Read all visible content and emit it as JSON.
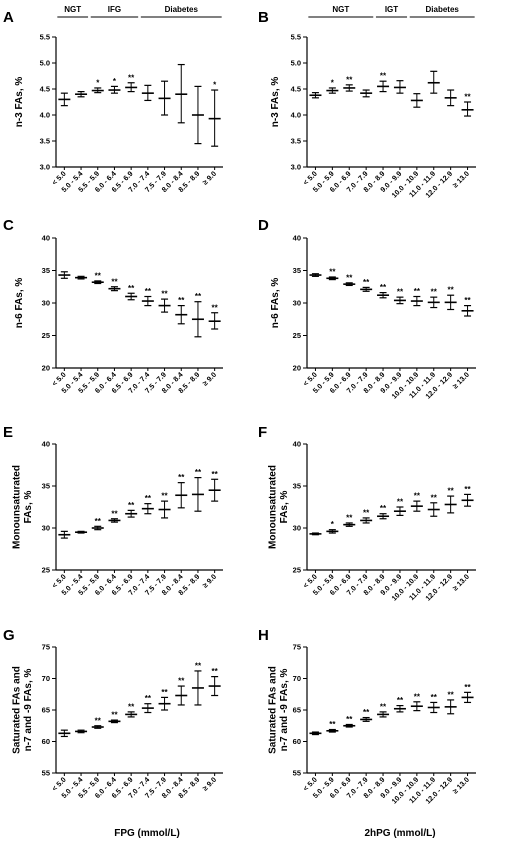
{
  "figure": {
    "xlabel_left": "FPG (mmol/L)",
    "xlabel_right": "2hPG (mmol/L)",
    "groups_left": [
      {
        "label": "NGT",
        "from": 0,
        "to": 1
      },
      {
        "label": "IFG",
        "from": 2,
        "to": 4
      },
      {
        "label": "Diabetes",
        "from": 5,
        "to": 9
      }
    ],
    "groups_right": [
      {
        "label": "NGT",
        "from": 0,
        "to": 3
      },
      {
        "label": "IGT",
        "from": 4,
        "to": 5
      },
      {
        "label": "Diabetes",
        "from": 6,
        "to": 9
      }
    ]
  },
  "chart_data": [
    {
      "panel": "A",
      "type": "scatter",
      "ylabel": "n-3 FAs, %",
      "categories": [
        "< 5.0",
        "5.0 - 5.4",
        "5.5 - 5.9",
        "6.0 - 6.4",
        "6.5 - 6.9",
        "7.0 - 7.4",
        "7.5 - 7.9",
        "8.0 - 8.4",
        "8.5 - 8.9",
        "≥ 9.0"
      ],
      "mean": [
        4.3,
        4.4,
        4.47,
        4.48,
        4.53,
        4.42,
        4.32,
        4.4,
        4.0,
        3.93
      ],
      "lower": [
        4.18,
        4.35,
        4.43,
        4.42,
        4.45,
        4.28,
        4.0,
        3.85,
        3.45,
        3.4
      ],
      "upper": [
        4.42,
        4.45,
        4.52,
        4.55,
        4.62,
        4.57,
        4.65,
        4.97,
        4.55,
        4.48
      ],
      "stars": [
        "",
        "",
        "*",
        "*",
        "**",
        "",
        "",
        "",
        "",
        "*"
      ],
      "ylim": [
        3.0,
        5.5
      ],
      "yticks": [
        "3.0",
        "3.5",
        "4.0",
        "4.5",
        "5.0",
        "5.5"
      ]
    },
    {
      "panel": "B",
      "type": "scatter",
      "ylabel": "n-3 FAs, %",
      "categories": [
        "< 5.0",
        "5.0 - 5.9",
        "6.0 - 6.9",
        "7.0 - 7.9",
        "8.0 - 8.9",
        "9.0 - 9.9",
        "10.0 - 10.9",
        "11.0 - 11.9",
        "12.0 - 12.9",
        "≥ 13.0"
      ],
      "mean": [
        4.38,
        4.47,
        4.52,
        4.42,
        4.55,
        4.53,
        4.28,
        4.62,
        4.33,
        4.1
      ],
      "lower": [
        4.33,
        4.42,
        4.46,
        4.35,
        4.45,
        4.42,
        4.15,
        4.42,
        4.18,
        3.98
      ],
      "upper": [
        4.43,
        4.52,
        4.58,
        4.48,
        4.65,
        4.66,
        4.41,
        4.84,
        4.48,
        4.25
      ],
      "stars": [
        "",
        "*",
        "**",
        "",
        "**",
        "",
        "",
        "",
        "",
        "**"
      ],
      "ylim": [
        3.0,
        5.5
      ],
      "yticks": [
        "3.0",
        "3.5",
        "4.0",
        "4.5",
        "5.0",
        "5.5"
      ]
    },
    {
      "panel": "C",
      "type": "scatter",
      "ylabel": "n-6 FAs, %",
      "categories": [
        "< 5.0",
        "5.0 - 5.4",
        "5.5 - 5.9",
        "6.0 - 6.4",
        "6.5 - 6.9",
        "7.0 - 7.4",
        "7.5 - 7.9",
        "8.0 - 8.4",
        "8.5 - 8.9",
        "≥ 9.0"
      ],
      "mean": [
        34.3,
        33.9,
        33.2,
        32.2,
        31.0,
        30.3,
        29.6,
        28.2,
        27.5,
        27.2
      ],
      "lower": [
        33.8,
        33.7,
        33.0,
        31.9,
        30.5,
        29.6,
        28.6,
        26.8,
        24.8,
        26.0
      ],
      "upper": [
        34.8,
        34.1,
        33.4,
        32.5,
        31.5,
        31.0,
        30.6,
        29.6,
        30.2,
        28.5
      ],
      "stars": [
        "",
        "",
        "**",
        "**",
        "**",
        "**",
        "**",
        "**",
        "**",
        "**"
      ],
      "ylim": [
        20,
        40
      ],
      "yticks": [
        "20",
        "25",
        "30",
        "35",
        "40"
      ]
    },
    {
      "panel": "D",
      "type": "scatter",
      "ylabel": "n-6 FAs, %",
      "categories": [
        "< 5.0",
        "5.0 - 5.9",
        "6.0 - 6.9",
        "7.0 - 7.9",
        "8.0 - 8.9",
        "9.0 - 9.9",
        "10.0 - 10.9",
        "11.0 - 11.9",
        "12.0 - 12.9",
        "≥ 13.0"
      ],
      "mean": [
        34.3,
        33.8,
        32.9,
        32.1,
        31.2,
        30.4,
        30.3,
        30.1,
        30.1,
        28.8
      ],
      "lower": [
        34.1,
        33.6,
        32.7,
        31.8,
        30.8,
        29.9,
        29.6,
        29.3,
        29.0,
        28.0
      ],
      "upper": [
        34.5,
        34.0,
        33.1,
        32.4,
        31.6,
        30.9,
        31.0,
        30.9,
        31.2,
        29.6
      ],
      "stars": [
        "",
        "**",
        "**",
        "**",
        "**",
        "**",
        "**",
        "**",
        "**",
        "**"
      ],
      "ylim": [
        20,
        40
      ],
      "yticks": [
        "20",
        "25",
        "30",
        "35",
        "40"
      ]
    },
    {
      "panel": "E",
      "type": "scatter",
      "ylabel": "Monounsaturated FAs, %",
      "categories": [
        "< 5.0",
        "5.0 - 5.4",
        "5.5 - 5.9",
        "6.0 - 6.4",
        "6.5 - 6.9",
        "7.0 - 7.4",
        "7.5 - 7.9",
        "8.0 - 8.4",
        "8.5 - 8.9",
        "≥ 9.0"
      ],
      "mean": [
        29.2,
        29.5,
        30.0,
        30.9,
        31.7,
        32.3,
        32.2,
        33.9,
        34.0,
        34.5
      ],
      "lower": [
        28.8,
        29.4,
        29.8,
        30.7,
        31.3,
        31.7,
        31.2,
        32.4,
        32.0,
        33.2
      ],
      "upper": [
        29.6,
        29.6,
        30.2,
        31.1,
        32.1,
        32.9,
        33.2,
        35.4,
        36.0,
        35.8
      ],
      "stars": [
        "",
        "",
        "**",
        "**",
        "**",
        "**",
        "**",
        "**",
        "**",
        "**"
      ],
      "ylim": [
        25,
        40
      ],
      "yticks": [
        "25",
        "30",
        "35",
        "40"
      ]
    },
    {
      "panel": "F",
      "type": "scatter",
      "ylabel": "Monounsaturated FAs, %",
      "categories": [
        "< 5.0",
        "5.0 - 5.9",
        "6.0 - 6.9",
        "7.0 - 7.9",
        "8.0 - 8.9",
        "9.0 - 9.9",
        "10.0 - 10.9",
        "11.0 - 11.9",
        "12.0 - 12.9",
        "≥ 13.0"
      ],
      "mean": [
        29.3,
        29.6,
        30.4,
        30.9,
        31.4,
        32.0,
        32.6,
        32.2,
        32.8,
        33.3
      ],
      "lower": [
        29.2,
        29.4,
        30.2,
        30.6,
        31.1,
        31.5,
        32.0,
        31.4,
        31.8,
        32.6
      ],
      "upper": [
        29.4,
        29.8,
        30.6,
        31.2,
        31.7,
        32.5,
        33.2,
        33.0,
        33.8,
        34.0
      ],
      "stars": [
        "",
        "*",
        "**",
        "**",
        "**",
        "**",
        "**",
        "**",
        "**",
        "**"
      ],
      "ylim": [
        25,
        40
      ],
      "yticks": [
        "25",
        "30",
        "35",
        "40"
      ]
    },
    {
      "panel": "G",
      "type": "scatter",
      "ylabel": "Saturated FAs and n-7 and -9 FAs, %",
      "categories": [
        "< 5.0",
        "5.0 - 5.4",
        "5.5 - 5.9",
        "6.0 - 6.4",
        "6.5 - 6.9",
        "7.0 - 7.4",
        "7.5 - 7.9",
        "8.0 - 8.4",
        "8.5 - 8.9",
        "≥ 9.0"
      ],
      "mean": [
        61.3,
        61.6,
        62.3,
        63.2,
        64.3,
        65.3,
        66.0,
        67.3,
        68.5,
        68.8
      ],
      "lower": [
        60.8,
        61.4,
        62.1,
        63.0,
        63.9,
        64.6,
        65.0,
        65.8,
        65.8,
        67.3
      ],
      "upper": [
        61.8,
        61.8,
        62.5,
        63.4,
        64.7,
        66.0,
        67.0,
        68.8,
        71.2,
        70.3
      ],
      "stars": [
        "",
        "",
        "**",
        "**",
        "**",
        "**",
        "**",
        "**",
        "**",
        "**"
      ],
      "ylim": [
        55,
        75
      ],
      "yticks": [
        "55",
        "60",
        "65",
        "70",
        "75"
      ]
    },
    {
      "panel": "H",
      "type": "scatter",
      "ylabel": "Saturated FAs and n-7 and -9 FAs, %",
      "categories": [
        "< 5.0",
        "5.0 - 5.9",
        "6.0 - 6.9",
        "7.0 - 7.9",
        "8.0 - 8.9",
        "9.0 - 9.9",
        "10.0 - 10.9",
        "11.0 - 11.9",
        "12.0 - 12.9",
        "≥ 13.0"
      ],
      "mean": [
        61.3,
        61.7,
        62.5,
        63.5,
        64.3,
        65.2,
        65.6,
        65.4,
        65.5,
        67.0
      ],
      "lower": [
        61.1,
        61.5,
        62.3,
        63.2,
        63.9,
        64.7,
        64.9,
        64.6,
        64.4,
        66.2
      ],
      "upper": [
        61.5,
        61.9,
        62.7,
        63.8,
        64.7,
        65.7,
        66.3,
        66.2,
        66.6,
        67.8
      ],
      "stars": [
        "",
        "**",
        "**",
        "**",
        "**",
        "**",
        "**",
        "**",
        "**",
        "**"
      ],
      "ylim": [
        55,
        75
      ],
      "yticks": [
        "55",
        "60",
        "65",
        "70",
        "75"
      ]
    }
  ]
}
